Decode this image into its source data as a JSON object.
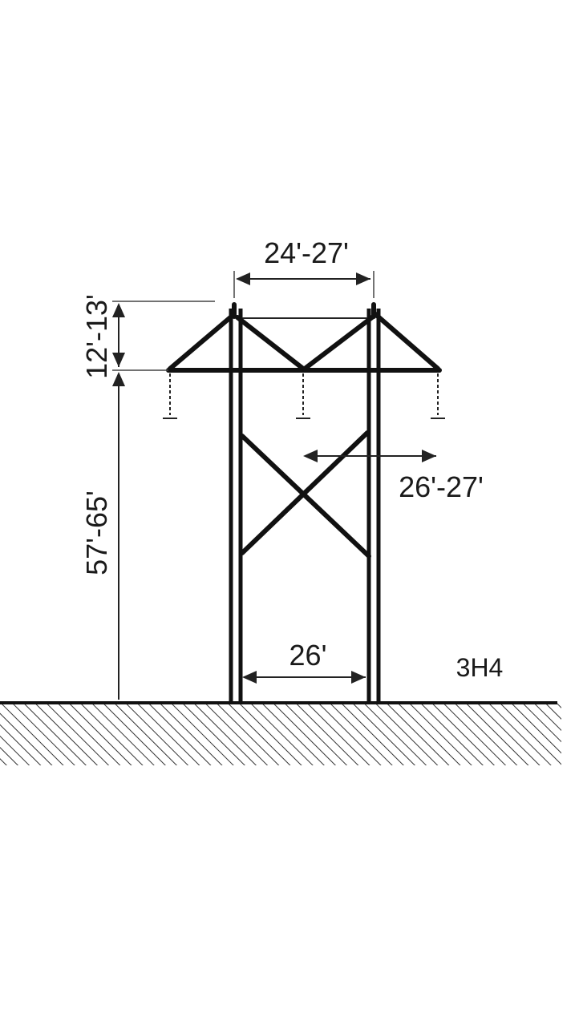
{
  "diagram": {
    "labels": {
      "top_width": "24'-27'",
      "top_height": "12'-13'",
      "main_height": "57'-65'",
      "phase_spacing": "26'-27'",
      "base_width": "26'",
      "code": "3H4"
    }
  }
}
